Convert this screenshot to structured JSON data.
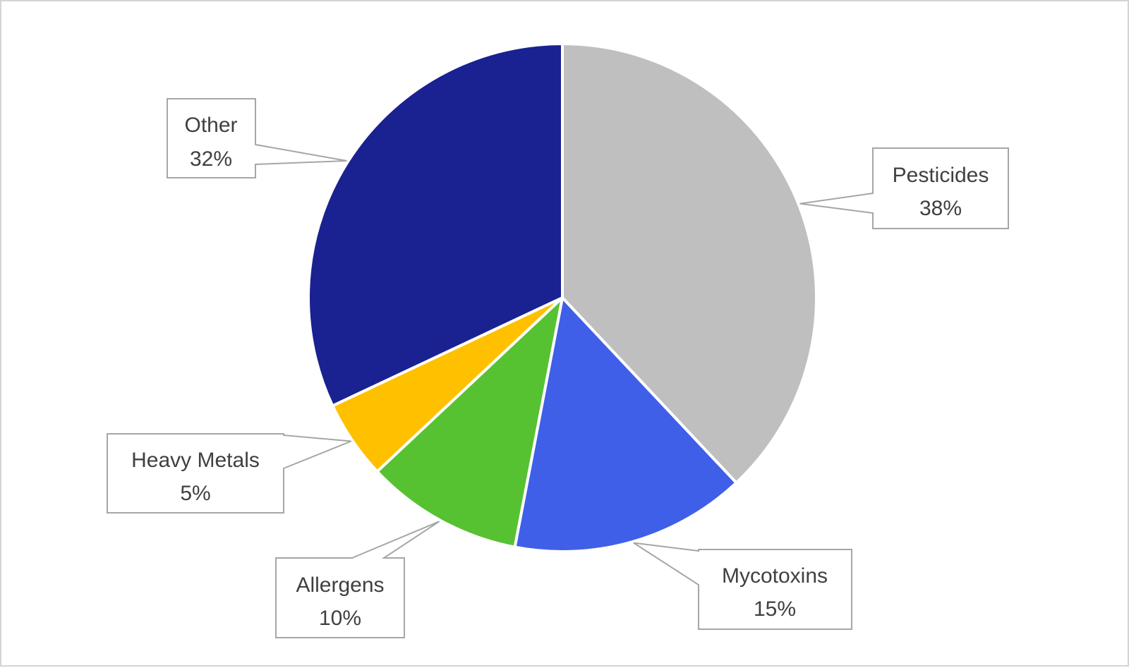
{
  "chart_data": {
    "type": "pie",
    "labels": [
      "Pesticides",
      "Mycotoxins",
      "Allergens",
      "Heavy Metals",
      "Other"
    ],
    "values": [
      38,
      15,
      10,
      5,
      32
    ],
    "unit": "%",
    "colors": [
      "#BFBFBF",
      "#3F5FE8",
      "#56C232",
      "#FFC000",
      "#1A2191"
    ],
    "start_angle_deg": 0,
    "direction": "clockwise",
    "slice_separator_color": "#FFFFFF",
    "label_style": "external callout boxes with leader wedges",
    "callout_border_color": "#A6A6A6",
    "callout_text_color": "#404040",
    "legend": "none",
    "title": "",
    "data_labels": [
      "Pesticides 38%",
      "Mycotoxins 15%",
      "Allergens 10%",
      "Heavy Metals 5%",
      "Other 32%"
    ]
  },
  "callouts": {
    "pesticides": {
      "label": "Pesticides",
      "value": "38%"
    },
    "mycotoxins": {
      "label": "Mycotoxins",
      "value": "15%"
    },
    "allergens": {
      "label": "Allergens",
      "value": "10%"
    },
    "heavy_metals": {
      "label": "Heavy Metals",
      "value": "5%"
    },
    "other": {
      "label": "Other",
      "value": "32%"
    }
  }
}
